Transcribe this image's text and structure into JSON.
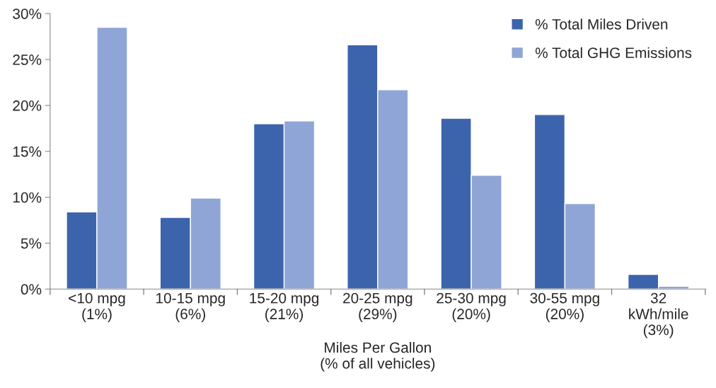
{
  "chart_data": {
    "type": "bar",
    "categories": [
      "<10 mpg\n(1%)",
      "10-15 mpg\n(6%)",
      "15-20 mpg\n(21%)",
      "20-25 mpg\n(29%)",
      "25-30 mpg\n(20%)",
      "30-55 mpg\n(20%)",
      "32\nkWh/mile\n(3%)"
    ],
    "series": [
      {
        "name": "% Total Miles Driven",
        "color": "#3c64ad",
        "values": [
          8.4,
          7.8,
          18.0,
          26.6,
          18.6,
          19.0,
          1.6
        ]
      },
      {
        "name": "% Total GHG Emissions",
        "color": "#8fa5d6",
        "values": [
          28.5,
          9.9,
          18.3,
          21.7,
          12.4,
          9.3,
          0.3
        ]
      }
    ],
    "xlabel": "Miles Per Gallon\n(% of all vehicles)",
    "ylim": [
      0,
      30
    ],
    "yticks": [
      {
        "value": 0,
        "label": "0%"
      },
      {
        "value": 5,
        "label": "5%"
      },
      {
        "value": 10,
        "label": "10%"
      },
      {
        "value": 15,
        "label": "15%"
      },
      {
        "value": 20,
        "label": "20%"
      },
      {
        "value": 25,
        "label": "25%"
      },
      {
        "value": 30,
        "label": "30%"
      }
    ],
    "grid": false,
    "legend": "top right"
  }
}
